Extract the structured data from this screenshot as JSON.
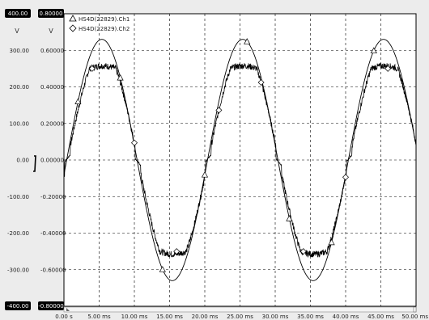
{
  "chart_data": {
    "type": "line",
    "x_ticks": [
      "0.00 s",
      "5.00 ms",
      "10.00 ms",
      "15.00 ms",
      "20.00 ms",
      "25.00 ms",
      "30.00 ms",
      "35.00 ms",
      "40.00 ms",
      "45.00 ms",
      "50.00 ms"
    ],
    "xlim_ms": [
      0,
      50
    ],
    "grid": true,
    "left_axis": {
      "unit": "V",
      "ylim": [
        -400,
        400
      ],
      "ticks": [
        "400.00",
        "300.00",
        "200.00",
        "100.00",
        "0.00",
        "-100.00",
        "-200.00",
        "-300.00",
        "-400.00"
      ],
      "top_badge": "400.00",
      "bottom_badge": "-400.00"
    },
    "right_axis": {
      "unit": "V",
      "ylim": [
        -0.8,
        0.8
      ],
      "ticks": [
        "0.80000",
        "0.60000",
        "0.40000",
        "0.20000",
        "0.00000",
        "-0.20000",
        "-0.40000",
        "-0.60000",
        "-0.80000"
      ],
      "top_badge": "0.80000",
      "bottom_badge": "-0.80000"
    },
    "legend_placement": "top-left",
    "series": [
      {
        "name": "HS4D(22829).Ch1",
        "marker": "triangle",
        "axis": "left",
        "frequency_hz": 50,
        "amplitude": 330,
        "phase_deg": -7,
        "marker_x_ms": [
          2,
          8,
          14,
          20,
          26,
          32,
          38,
          44
        ]
      },
      {
        "name": "HS4D(22829).Ch2",
        "marker": "diamond",
        "axis": "right",
        "frequency_hz": 50,
        "amplitude": 0.6,
        "phase_deg": -9,
        "clipped_peak": 0.5,
        "marker_x_ms": [
          4,
          10,
          16,
          22,
          28,
          34,
          40,
          46
        ]
      }
    ],
    "colors": {
      "background": "#ffffff",
      "panel": "#ececec",
      "trace": "#000000",
      "grid": "#000000",
      "badge": "#000000"
    }
  }
}
